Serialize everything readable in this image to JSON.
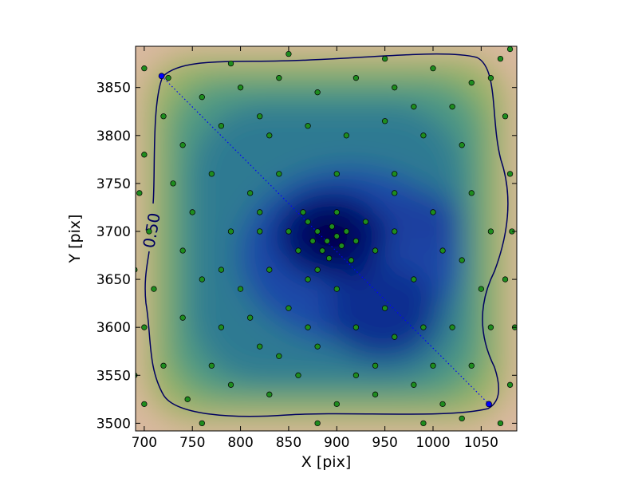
{
  "chart_data": {
    "type": "scatter",
    "x_label": "X [pix]",
    "y_label": "Y [pix]",
    "xlim": [
      691,
      1087
    ],
    "ylim": [
      3492,
      3893
    ],
    "xticks": [
      700,
      750,
      800,
      850,
      900,
      950,
      1000,
      1050
    ],
    "yticks": [
      3500,
      3550,
      3600,
      3650,
      3700,
      3750,
      3800,
      3850
    ],
    "contour": {
      "level": 0.5,
      "label": "0.50",
      "color": "#000060"
    },
    "diagonal": {
      "x": [
        718,
        1058
      ],
      "y": [
        3862,
        3520
      ],
      "color": "#0000ff"
    },
    "series": [
      {
        "color": "#1e8c1e",
        "x": [
          880,
          890,
          900,
          885,
          895,
          875,
          905,
          870,
          910,
          892,
          860,
          920,
          880,
          900,
          865,
          915,
          850,
          930,
          940,
          870,
          820,
          830,
          960,
          980,
          950,
          920,
          900,
          850,
          800,
          790,
          840,
          900,
          960,
          1000,
          1010,
          990,
          940,
          880,
          820,
          780,
          720,
          760,
          800,
          840,
          880,
          920,
          960,
          1000,
          1040,
          1070,
          700,
          740,
          780,
          830,
          870,
          910,
          950,
          990,
          1030,
          1075,
          695,
          730,
          770,
          810,
          1040,
          1080,
          1060,
          1030,
          1075,
          705,
          740,
          760,
          710,
          700,
          740,
          770,
          720,
          700,
          745,
          790,
          830,
          860,
          900,
          940,
          980,
          1010,
          1040,
          1060,
          1080,
          1070,
          1020,
          1000,
          960,
          920,
          870,
          840,
          810,
          780,
          750,
          1050,
          700,
          725,
          1080,
          1060,
          950,
          850,
          790,
          820,
          980,
          1020,
          760,
          880,
          990,
          1030,
          690,
          1085,
          1082,
          690,
          960,
          820
        ],
        "y": [
          3700,
          3690,
          3695,
          3680,
          3705,
          3690,
          3685,
          3710,
          3700,
          3672,
          3680,
          3690,
          3660,
          3720,
          3720,
          3670,
          3700,
          3710,
          3680,
          3650,
          3700,
          3660,
          3700,
          3650,
          3620,
          3600,
          3640,
          3620,
          3640,
          3700,
          3760,
          3760,
          3760,
          3720,
          3680,
          3600,
          3560,
          3580,
          3580,
          3600,
          3820,
          3840,
          3850,
          3860,
          3845,
          3860,
          3850,
          3870,
          3855,
          3880,
          3780,
          3790,
          3810,
          3800,
          3810,
          3800,
          3815,
          3800,
          3790,
          3820,
          3740,
          3750,
          3760,
          3740,
          3740,
          3760,
          3700,
          3670,
          3650,
          3700,
          3680,
          3650,
          3640,
          3600,
          3610,
          3560,
          3560,
          3520,
          3525,
          3540,
          3530,
          3550,
          3520,
          3530,
          3540,
          3520,
          3560,
          3600,
          3540,
          3500,
          3600,
          3560,
          3590,
          3550,
          3600,
          3570,
          3610,
          3660,
          3720,
          3640,
          3870,
          3860,
          3890,
          3860,
          3880,
          3885,
          3875,
          3820,
          3830,
          3830,
          3500,
          3500,
          3500,
          3505,
          3550,
          3600,
          3700,
          3660,
          3740,
          3720
        ]
      }
    ]
  }
}
